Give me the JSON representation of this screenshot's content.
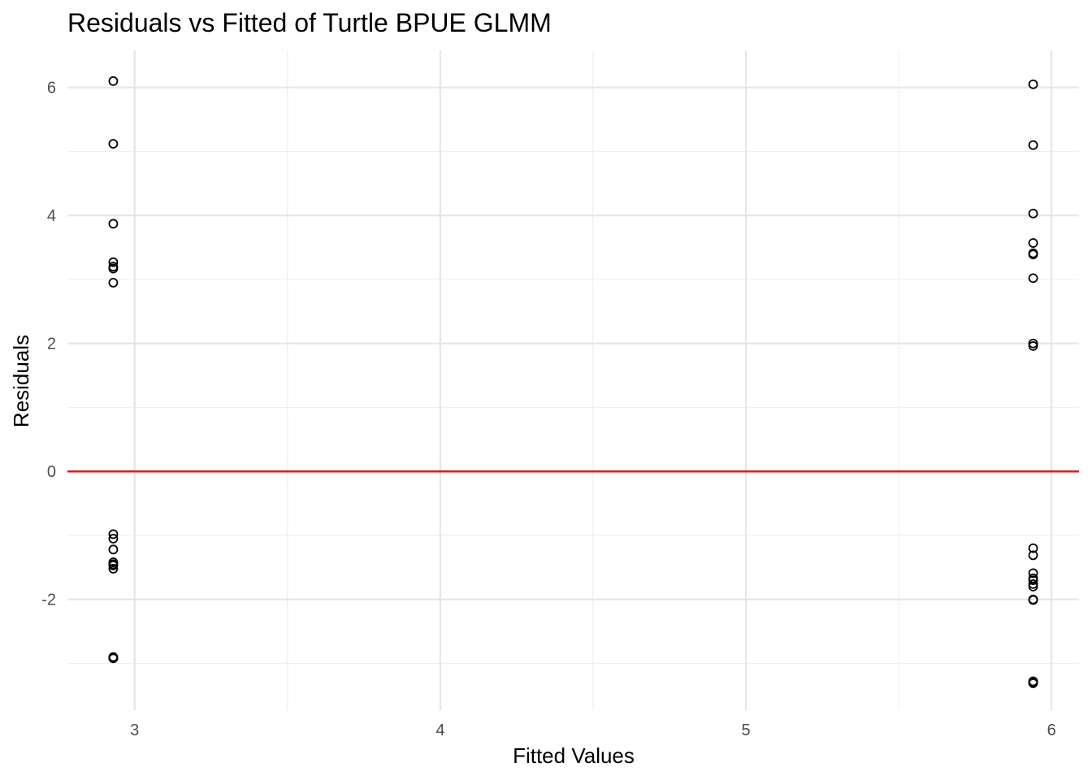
{
  "chart_data": {
    "type": "scatter",
    "title": "Residuals vs Fitted of Turtle BPUE GLMM",
    "xlabel": "Fitted Values",
    "ylabel": "Residuals",
    "xlim": [
      2.78,
      6.09
    ],
    "ylim": [
      -3.73,
      6.58
    ],
    "x_ticks": [
      3,
      4,
      5,
      6
    ],
    "y_ticks": [
      -2,
      0,
      2,
      4,
      6
    ],
    "x_tick_labels": [
      "3",
      "4",
      "5",
      "6"
    ],
    "y_tick_labels": [
      "-2",
      "0",
      "2",
      "4",
      "6"
    ],
    "grid": true,
    "reference_line": {
      "y": 0,
      "color": "#e41a1c"
    },
    "point_color": "#000000",
    "series": [
      {
        "x": [
          2.93,
          2.93,
          2.93,
          2.93,
          2.93,
          2.93,
          2.93,
          2.93,
          2.93,
          2.93,
          2.93,
          2.93,
          2.93,
          2.93,
          2.93,
          2.93,
          2.93,
          2.93
        ],
        "y": [
          6.1,
          5.12,
          3.87,
          3.27,
          3.2,
          3.17,
          2.95,
          -0.98,
          -1.05,
          -1.22,
          -1.42,
          -1.45,
          -1.47,
          -1.52,
          -2.9,
          -2.91,
          -2.92,
          -2.92
        ]
      },
      {
        "x": [
          5.94,
          5.94,
          5.94,
          5.94,
          5.94,
          5.94,
          5.94,
          5.94,
          5.94,
          5.94,
          5.94,
          5.94,
          5.94,
          5.94,
          5.94,
          5.94,
          5.94,
          5.94,
          5.94,
          5.94,
          5.94,
          5.94
        ],
        "y": [
          6.05,
          5.1,
          4.03,
          3.57,
          3.41,
          3.39,
          3.02,
          2.0,
          1.96,
          -1.2,
          -1.31,
          -1.59,
          -1.67,
          -1.7,
          -1.76,
          -1.8,
          -2.0,
          -2.01,
          -3.28,
          -3.29,
          -3.3,
          -3.31
        ]
      }
    ]
  }
}
